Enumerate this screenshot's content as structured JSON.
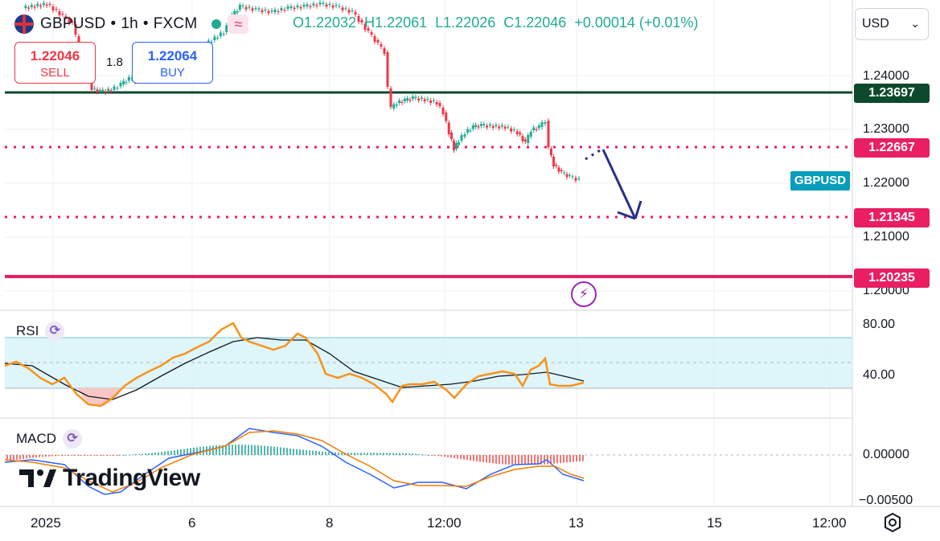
{
  "symbol": {
    "name": "GBPUSD",
    "separator": "•",
    "interval": "1h",
    "exchange": "FXCM",
    "wave_symbol": "≈"
  },
  "ohlc": {
    "open": "O1.22032",
    "high": "H1.22061",
    "low": "L1.22026",
    "close": "C1.22046",
    "change": "+0.00014 (+0.01%)"
  },
  "trade": {
    "sell_price": "1.22046",
    "sell_label": "SELL",
    "spread": "1.8",
    "buy_price": "1.22064",
    "buy_label": "BUY"
  },
  "currency": {
    "value": "USD",
    "chevron": "⌄"
  },
  "price_axis": {
    "ticks": [
      "1.24000",
      "1.23000",
      "1.22000",
      "1.21000",
      "1.20000"
    ]
  },
  "price_levels": [
    {
      "label": "1.23697",
      "style": "solid",
      "color": "#0c4a2b"
    },
    {
      "label": "1.22667",
      "style": "dotted",
      "color": "#e91e63"
    },
    {
      "label": "1.21345",
      "style": "dotted",
      "color": "#e91e63"
    },
    {
      "label": "1.20235",
      "style": "solid",
      "color": "#e91e63"
    }
  ],
  "symbol_tag": "GBPUSD",
  "rsi": {
    "label": "RSI",
    "ticks": [
      "80.00",
      "40.00"
    ]
  },
  "macd": {
    "label": "MACD",
    "ticks": [
      "0.00000",
      "−0.00500"
    ]
  },
  "brand": {
    "logo_text": "TradingView"
  },
  "time_axis": {
    "labels": [
      "2025",
      "6",
      "8",
      "12:00",
      "13",
      "15",
      "12:00"
    ]
  },
  "colors": {
    "up": "#22ab94",
    "down": "#f23645",
    "rsi_line": "#f7931a",
    "macd_line": "#2962ff",
    "signal_line": "#f57c00",
    "arrow": "#2a2e8a"
  },
  "icons": {
    "cycle": "⟳",
    "bolt": "⚡",
    "settings": "gear-icon"
  }
}
